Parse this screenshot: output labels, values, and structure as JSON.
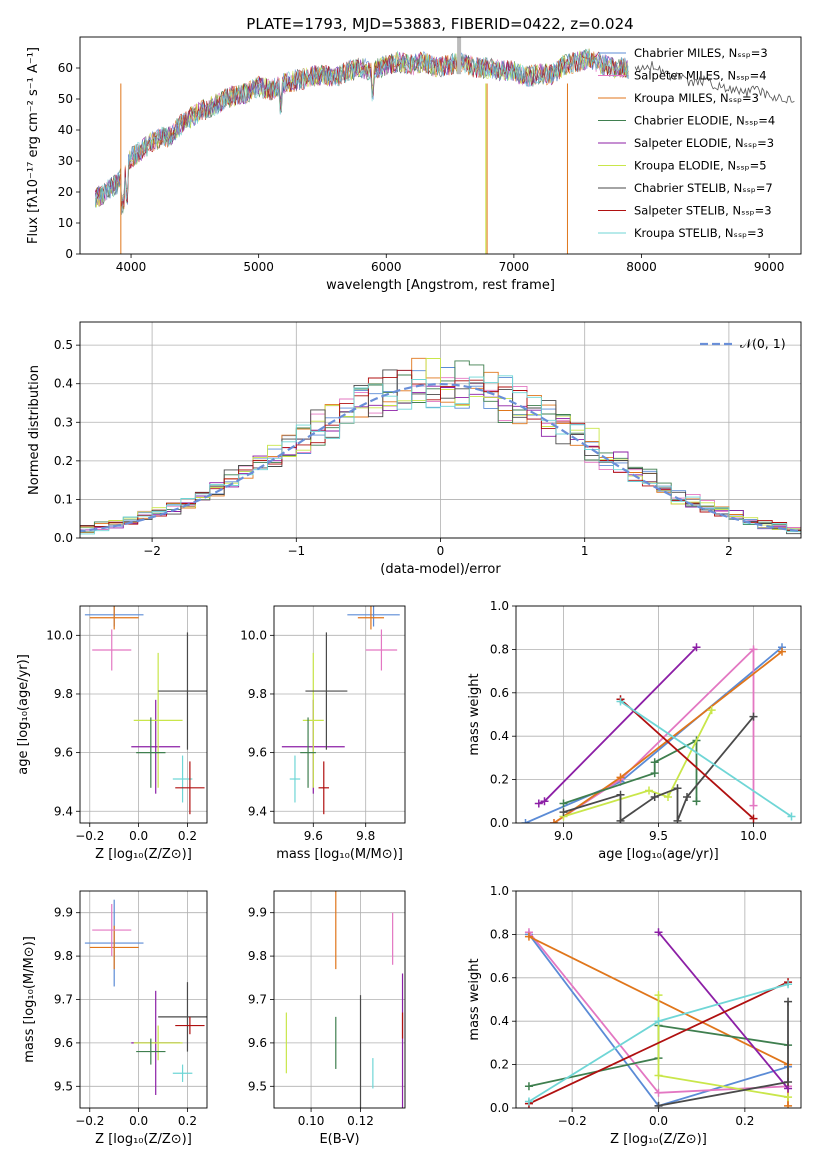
{
  "title": "PLATE=1793, MJD=53883, FIBERID=0422, z=0.024",
  "colors": {
    "chabrier_miles": "#5b8bd6",
    "salpeter_miles": "#e377c2",
    "kroupa_miles": "#e0761b",
    "chabrier_elodie": "#3f7f4f",
    "salpeter_elodie": "#8c1fa6",
    "kroupa_elodie": "#c9e64a",
    "chabrier_stelib": "#4a4a4a",
    "salpeter_stelib": "#b01010",
    "kroupa_stelib": "#6fd6d6",
    "normal": "#6a8fd8",
    "grid": "#b0b0b0"
  },
  "chart_data": [
    {
      "type": "line",
      "id": "spectrum",
      "title": "PLATE=1793, MJD=53883, FIBERID=0422, z=0.024",
      "xlabel": "wavelength [Angstrom, rest frame]",
      "ylabel": "Flux [fλ10⁻¹⁷ erg cm⁻² s⁻¹ A⁻¹]",
      "xlim": [
        3600,
        9250
      ],
      "ylim": [
        0,
        70
      ],
      "xticks": [
        4000,
        5000,
        6000,
        7000,
        8000,
        9000
      ],
      "yticks": [
        0,
        10,
        20,
        30,
        40,
        50,
        60
      ],
      "legend_position": "top-right",
      "legend": [
        "Chabrier MILES, Nₛₛₚ=3",
        "Salpeter MILES, Nₛₛₚ=4",
        "Kroupa MILES, Nₛₛₚ=3",
        "Chabrier ELODIE, Nₛₛₚ=4",
        "Salpeter ELODIE, Nₛₛₚ=3",
        "Kroupa ELODIE, Nₛₛₚ=5",
        "Chabrier STELIB, Nₛₛₚ=7",
        "Salpeter STELIB, Nₛₛₚ=3",
        "Kroupa STELIB, Nₛₛₚ=3"
      ],
      "continuum": {
        "x": [
          3720,
          3800,
          3900,
          4000,
          4100,
          4200,
          4300,
          4400,
          4500,
          4600,
          4700,
          4800,
          4900,
          5000,
          5100,
          5200,
          5300,
          5400,
          5500,
          5600,
          5700,
          5800,
          5900,
          6000,
          6100,
          6200,
          6300,
          6400,
          6500,
          6600,
          6700,
          6800,
          6900,
          7000,
          7100,
          7200,
          7300,
          7400,
          7500,
          7600,
          7700,
          7800,
          7900
        ],
        "y": [
          18,
          20,
          23,
          31,
          34,
          37,
          38,
          42,
          45,
          47,
          49,
          51,
          52,
          54,
          53,
          55,
          56,
          57,
          58,
          57,
          59,
          60,
          59,
          61,
          62,
          61,
          62,
          60,
          61,
          62,
          60,
          60,
          59,
          59,
          57,
          58,
          58,
          61,
          62,
          63,
          61,
          60,
          60
        ]
      },
      "tail": {
        "x": [
          7950,
          8100,
          8200,
          8300,
          8400,
          8500,
          8600,
          8700,
          8800,
          8900,
          9000,
          9100,
          9200
        ],
        "y": [
          60,
          61,
          58,
          57,
          55,
          56,
          54,
          53,
          52,
          53,
          51,
          50,
          50
        ]
      }
    },
    {
      "type": "histogram",
      "id": "residuals",
      "xlabel": "(data-model)/error",
      "ylabel": "Normed distribution",
      "xlim": [
        -2.5,
        2.5
      ],
      "ylim": [
        0,
        0.56
      ],
      "xticks": [
        -2,
        -1,
        0,
        1,
        2
      ],
      "yticks": [
        0.0,
        0.1,
        0.2,
        0.3,
        0.4,
        0.5
      ],
      "legend": [
        "𝒩(0, 1)"
      ],
      "legend_position": "top-right",
      "bin_edges_range": [
        -2.6,
        2.6
      ],
      "n_bins": 52
    },
    {
      "type": "scatter",
      "id": "age_vs_Z",
      "xlabel": "Z [log₁₀(Z/Z⊙)]",
      "ylabel": "age  [log₁₀(age/yr)]",
      "xlim": [
        -0.24,
        0.28
      ],
      "ylim": [
        9.36,
        10.1
      ],
      "xticks": [
        -0.2,
        0.0,
        0.2
      ],
      "yticks": [
        9.4,
        9.6,
        9.8,
        10.0
      ],
      "points": [
        {
          "model": "chabrier_miles",
          "x": -0.1,
          "y": 10.07,
          "xerr": 0.12,
          "yerr": 0.04
        },
        {
          "model": "kroupa_miles",
          "x": -0.1,
          "y": 10.06,
          "xerr": 0.1,
          "yerr": 0.04
        },
        {
          "model": "salpeter_miles",
          "x": -0.11,
          "y": 9.95,
          "xerr": 0.08,
          "yerr": 0.07
        },
        {
          "model": "salpeter_elodie",
          "x": 0.07,
          "y": 9.62,
          "xerr": 0.1,
          "yerr": 0.16
        },
        {
          "model": "kroupa_elodie",
          "x": 0.08,
          "y": 9.71,
          "xerr": 0.1,
          "yerr": 0.23
        },
        {
          "model": "chabrier_elodie",
          "x": 0.05,
          "y": 9.6,
          "xerr": 0.06,
          "yerr": 0.12
        },
        {
          "model": "chabrier_stelib",
          "x": 0.2,
          "y": 9.81,
          "xerr": 0.12,
          "yerr": 0.2
        },
        {
          "model": "kroupa_stelib",
          "x": 0.18,
          "y": 9.51,
          "xerr": 0.04,
          "yerr": 0.08
        },
        {
          "model": "salpeter_stelib",
          "x": 0.21,
          "y": 9.48,
          "xerr": 0.06,
          "yerr": 0.09
        }
      ]
    },
    {
      "type": "scatter",
      "id": "age_vs_mass",
      "xlabel": "mass [log₁₀(M/M⊙)]",
      "ylabel": "",
      "xlim": [
        9.45,
        9.95
      ],
      "ylim": [
        9.36,
        10.1
      ],
      "xticks": [
        9.6,
        9.8
      ],
      "yticks": [
        9.4,
        9.6,
        9.8,
        10.0
      ],
      "points": [
        {
          "model": "chabrier_miles",
          "x": 9.83,
          "y": 10.07,
          "xerr": 0.1,
          "yerr": 0.04
        },
        {
          "model": "kroupa_miles",
          "x": 9.82,
          "y": 10.06,
          "xerr": 0.05,
          "yerr": 0.04
        },
        {
          "model": "salpeter_miles",
          "x": 9.86,
          "y": 9.95,
          "xerr": 0.06,
          "yerr": 0.07
        },
        {
          "model": "salpeter_elodie",
          "x": 9.6,
          "y": 9.62,
          "xerr": 0.12,
          "yerr": 0.16
        },
        {
          "model": "kroupa_elodie",
          "x": 9.6,
          "y": 9.71,
          "xerr": 0.04,
          "yerr": 0.23
        },
        {
          "model": "chabrier_elodie",
          "x": 9.58,
          "y": 9.6,
          "xerr": 0.03,
          "yerr": 0.12
        },
        {
          "model": "chabrier_stelib",
          "x": 9.65,
          "y": 9.81,
          "xerr": 0.08,
          "yerr": 0.2
        },
        {
          "model": "kroupa_stelib",
          "x": 9.53,
          "y": 9.51,
          "xerr": 0.02,
          "yerr": 0.08
        },
        {
          "model": "salpeter_stelib",
          "x": 9.64,
          "y": 9.48,
          "xerr": 0.02,
          "yerr": 0.09
        }
      ]
    },
    {
      "type": "line",
      "id": "weight_vs_age",
      "xlabel": "age  [log₁₀(age/yr)]",
      "ylabel": "mass weight",
      "xlim": [
        8.75,
        10.25
      ],
      "ylim": [
        0,
        1.0
      ],
      "xticks": [
        9.0,
        9.5,
        10.0
      ],
      "yticks": [
        0.0,
        0.2,
        0.4,
        0.6,
        0.8,
        1.0
      ],
      "series": [
        {
          "model": "chabrier_miles",
          "x": [
            8.8,
            9.3,
            10.15
          ],
          "y": [
            0.0,
            0.19,
            0.81
          ]
        },
        {
          "model": "salpeter_miles",
          "x": [
            8.95,
            9.3,
            10.0,
            10.0
          ],
          "y": [
            0.0,
            0.2,
            0.8,
            0.08
          ]
        },
        {
          "model": "kroupa_miles",
          "x": [
            8.95,
            9.3,
            10.15
          ],
          "y": [
            0.0,
            0.21,
            0.79
          ]
        },
        {
          "model": "chabrier_elodie",
          "x": [
            9.0,
            9.48,
            9.48,
            9.7,
            9.7
          ],
          "y": [
            0.09,
            0.23,
            0.28,
            0.38,
            0.1
          ]
        },
        {
          "model": "salpeter_elodie",
          "x": [
            8.87,
            8.9,
            9.7
          ],
          "y": [
            0.09,
            0.1,
            0.81
          ]
        },
        {
          "model": "kroupa_elodie",
          "x": [
            9.0,
            9.45,
            9.55,
            9.78
          ],
          "y": [
            0.03,
            0.15,
            0.12,
            0.52
          ]
        },
        {
          "model": "chabrier_stelib",
          "x": [
            9.0,
            9.3,
            9.3,
            9.48,
            9.6,
            9.6,
            9.65,
            10.0
          ],
          "y": [
            0.05,
            0.13,
            0.01,
            0.12,
            0.16,
            0.01,
            0.12,
            0.49
          ]
        },
        {
          "model": "salpeter_stelib",
          "x": [
            9.3,
            10.0
          ],
          "y": [
            0.57,
            0.02
          ]
        },
        {
          "model": "kroupa_stelib",
          "x": [
            9.3,
            10.2
          ],
          "y": [
            0.56,
            0.03
          ]
        }
      ]
    },
    {
      "type": "scatter",
      "id": "mass_vs_Z",
      "xlabel": "Z [log₁₀(Z/Z⊙)]",
      "ylabel": "mass [log₁₀(M/M⊙)]",
      "xlim": [
        -0.24,
        0.28
      ],
      "ylim": [
        9.45,
        9.95
      ],
      "xticks": [
        -0.2,
        0.0,
        0.2
      ],
      "yticks": [
        9.5,
        9.6,
        9.7,
        9.8,
        9.9
      ],
      "points": [
        {
          "model": "chabrier_miles",
          "x": -0.1,
          "y": 9.83,
          "xerr": 0.12,
          "yerr": 0.1
        },
        {
          "model": "kroupa_miles",
          "x": -0.1,
          "y": 9.82,
          "xerr": 0.1,
          "yerr": 0.05
        },
        {
          "model": "salpeter_miles",
          "x": -0.11,
          "y": 9.86,
          "xerr": 0.08,
          "yerr": 0.06
        },
        {
          "model": "salpeter_elodie",
          "x": 0.07,
          "y": 9.6,
          "xerr": 0.1,
          "yerr": 0.12
        },
        {
          "model": "kroupa_elodie",
          "x": 0.08,
          "y": 9.6,
          "xerr": 0.1,
          "yerr": 0.04
        },
        {
          "model": "chabrier_elodie",
          "x": 0.05,
          "y": 9.58,
          "xerr": 0.06,
          "yerr": 0.03
        },
        {
          "model": "chabrier_stelib",
          "x": 0.2,
          "y": 9.66,
          "xerr": 0.12,
          "yerr": 0.08
        },
        {
          "model": "kroupa_stelib",
          "x": 0.18,
          "y": 9.53,
          "xerr": 0.04,
          "yerr": 0.02
        },
        {
          "model": "salpeter_stelib",
          "x": 0.21,
          "y": 9.64,
          "xerr": 0.06,
          "yerr": 0.02
        }
      ]
    },
    {
      "type": "scatter",
      "id": "mass_vs_ebv",
      "xlabel": "E(B-V)",
      "ylabel": "",
      "xlim": [
        0.085,
        0.138
      ],
      "ylim": [
        9.45,
        9.95
      ],
      "xticks": [
        0.1,
        0.12
      ],
      "xticklabels": [
        "0.10",
        "0.12"
      ],
      "yticks": [
        9.5,
        9.6,
        9.7,
        9.8,
        9.9
      ],
      "points": [
        {
          "model": "kroupa_miles",
          "x": 0.11,
          "y": 9.86,
          "yerr": 0.09
        },
        {
          "model": "salpeter_miles",
          "x": 0.133,
          "y": 9.84,
          "yerr": 0.06
        },
        {
          "model": "salpeter_elodie",
          "x": 0.137,
          "y": 9.6,
          "yerr": 0.16
        },
        {
          "model": "chabrier_stelib",
          "x": 0.12,
          "y": 9.55,
          "yerr": 0.16
        },
        {
          "model": "chabrier_elodie",
          "x": 0.11,
          "y": 9.6,
          "yerr": 0.06
        },
        {
          "model": "kroupa_elodie",
          "x": 0.09,
          "y": 9.6,
          "yerr": 0.07
        },
        {
          "model": "kroupa_stelib",
          "x": 0.125,
          "y": 9.53,
          "yerr": 0.035
        },
        {
          "model": "salpeter_stelib",
          "x": 0.137,
          "y": 9.64,
          "yerr": 0.03
        }
      ]
    },
    {
      "type": "line",
      "id": "weight_vs_Z",
      "xlabel": "Z [log₁₀(Z/Z⊙)]",
      "ylabel": "mass weight",
      "xlim": [
        -0.33,
        0.33
      ],
      "ylim": [
        0,
        1.0
      ],
      "xticks": [
        -0.2,
        0.0,
        0.2
      ],
      "yticks": [
        0.0,
        0.2,
        0.4,
        0.6,
        0.8,
        1.0
      ],
      "series": [
        {
          "model": "chabrier_miles",
          "x": [
            -0.3,
            0.0,
            0.3
          ],
          "y": [
            0.8,
            0.01,
            0.19
          ]
        },
        {
          "model": "salpeter_miles",
          "x": [
            -0.3,
            0.0,
            0.3
          ],
          "y": [
            0.81,
            0.07,
            0.1
          ]
        },
        {
          "model": "kroupa_miles",
          "x": [
            -0.3,
            0.3,
            0.3
          ],
          "y": [
            0.79,
            0.2,
            0.01
          ]
        },
        {
          "model": "chabrier_elodie",
          "x": [
            -0.3,
            0.0,
            0.0,
            0.3
          ],
          "y": [
            0.1,
            0.23,
            0.38,
            0.29
          ]
        },
        {
          "model": "salpeter_elodie",
          "x": [
            0.0,
            0.3
          ],
          "y": [
            0.81,
            0.09
          ]
        },
        {
          "model": "kroupa_elodie",
          "x": [
            0.0,
            0.0,
            0.3
          ],
          "y": [
            0.52,
            0.15,
            0.05
          ]
        },
        {
          "model": "chabrier_stelib",
          "x": [
            0.0,
            0.3,
            0.3
          ],
          "y": [
            0.01,
            0.12,
            0.49
          ]
        },
        {
          "model": "salpeter_stelib",
          "x": [
            -0.3,
            0.3
          ],
          "y": [
            0.02,
            0.58
          ]
        },
        {
          "model": "kroupa_stelib",
          "x": [
            -0.3,
            0.0,
            0.3
          ],
          "y": [
            0.03,
            0.4,
            0.57
          ]
        }
      ]
    }
  ]
}
